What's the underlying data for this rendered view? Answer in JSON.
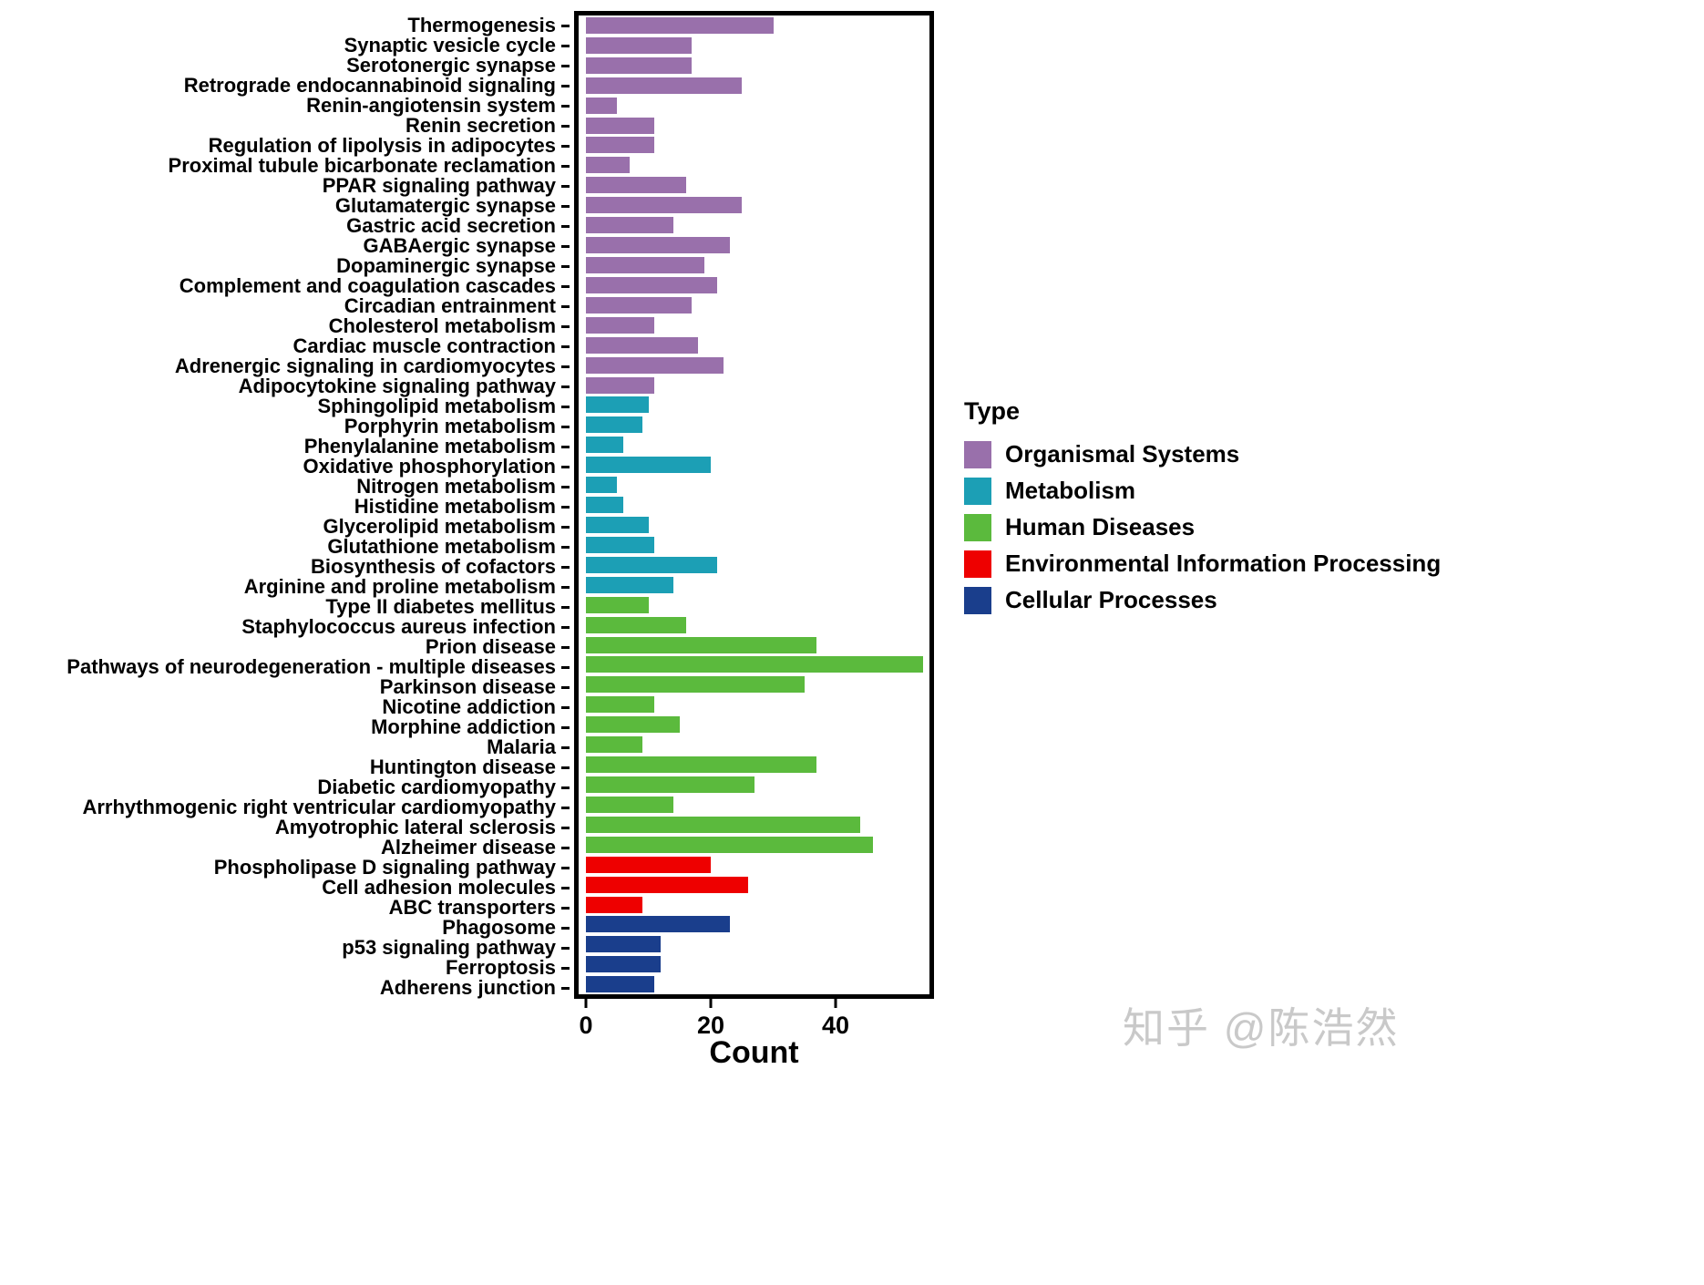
{
  "watermark": {
    "text": "知乎 @陈浩然"
  },
  "chart_data": {
    "type": "bar",
    "orientation": "horizontal",
    "title": "",
    "xlabel": "Count",
    "ylabel": "",
    "xlim": [
      0,
      55
    ],
    "x_ticks": [
      0,
      20,
      40
    ],
    "grid": false,
    "legend_title": "Type",
    "legend_position": "right",
    "types": [
      {
        "name": "Organismal Systems",
        "color": "#9970AB"
      },
      {
        "name": "Metabolism",
        "color": "#1C9FB5"
      },
      {
        "name": "Human Diseases",
        "color": "#5BBA3D"
      },
      {
        "name": "Environmental Information Processing",
        "color": "#EE0000"
      },
      {
        "name": "Cellular Processes",
        "color": "#1A3E8C"
      }
    ],
    "bars": [
      {
        "category": "Thermogenesis",
        "value": 30,
        "type": "Organismal Systems"
      },
      {
        "category": "Synaptic vesicle cycle",
        "value": 17,
        "type": "Organismal Systems"
      },
      {
        "category": "Serotonergic synapse",
        "value": 17,
        "type": "Organismal Systems"
      },
      {
        "category": "Retrograde endocannabinoid signaling",
        "value": 25,
        "type": "Organismal Systems"
      },
      {
        "category": "Renin-angiotensin system",
        "value": 5,
        "type": "Organismal Systems"
      },
      {
        "category": "Renin secretion",
        "value": 11,
        "type": "Organismal Systems"
      },
      {
        "category": "Regulation of lipolysis in adipocytes",
        "value": 11,
        "type": "Organismal Systems"
      },
      {
        "category": "Proximal tubule bicarbonate reclamation",
        "value": 7,
        "type": "Organismal Systems"
      },
      {
        "category": "PPAR signaling pathway",
        "value": 16,
        "type": "Organismal Systems"
      },
      {
        "category": "Glutamatergic synapse",
        "value": 25,
        "type": "Organismal Systems"
      },
      {
        "category": "Gastric acid secretion",
        "value": 14,
        "type": "Organismal Systems"
      },
      {
        "category": "GABAergic synapse",
        "value": 23,
        "type": "Organismal Systems"
      },
      {
        "category": "Dopaminergic synapse",
        "value": 19,
        "type": "Organismal Systems"
      },
      {
        "category": "Complement and coagulation cascades",
        "value": 21,
        "type": "Organismal Systems"
      },
      {
        "category": "Circadian entrainment",
        "value": 17,
        "type": "Organismal Systems"
      },
      {
        "category": "Cholesterol metabolism",
        "value": 11,
        "type": "Organismal Systems"
      },
      {
        "category": "Cardiac muscle contraction",
        "value": 18,
        "type": "Organismal Systems"
      },
      {
        "category": "Adrenergic signaling in cardiomyocytes",
        "value": 22,
        "type": "Organismal Systems"
      },
      {
        "category": "Adipocytokine signaling pathway",
        "value": 11,
        "type": "Organismal Systems"
      },
      {
        "category": "Sphingolipid metabolism",
        "value": 10,
        "type": "Metabolism"
      },
      {
        "category": "Porphyrin metabolism",
        "value": 9,
        "type": "Metabolism"
      },
      {
        "category": "Phenylalanine metabolism",
        "value": 6,
        "type": "Metabolism"
      },
      {
        "category": "Oxidative phosphorylation",
        "value": 20,
        "type": "Metabolism"
      },
      {
        "category": "Nitrogen metabolism",
        "value": 5,
        "type": "Metabolism"
      },
      {
        "category": "Histidine metabolism",
        "value": 6,
        "type": "Metabolism"
      },
      {
        "category": "Glycerolipid metabolism",
        "value": 10,
        "type": "Metabolism"
      },
      {
        "category": "Glutathione metabolism",
        "value": 11,
        "type": "Metabolism"
      },
      {
        "category": "Biosynthesis of cofactors",
        "value": 21,
        "type": "Metabolism"
      },
      {
        "category": "Arginine and proline metabolism",
        "value": 14,
        "type": "Metabolism"
      },
      {
        "category": "Type II diabetes mellitus",
        "value": 10,
        "type": "Human Diseases"
      },
      {
        "category": "Staphylococcus aureus infection",
        "value": 16,
        "type": "Human Diseases"
      },
      {
        "category": "Prion disease",
        "value": 37,
        "type": "Human Diseases"
      },
      {
        "category": "Pathways of neurodegeneration - multiple diseases",
        "value": 54,
        "type": "Human Diseases"
      },
      {
        "category": "Parkinson disease",
        "value": 35,
        "type": "Human Diseases"
      },
      {
        "category": "Nicotine addiction",
        "value": 11,
        "type": "Human Diseases"
      },
      {
        "category": "Morphine addiction",
        "value": 15,
        "type": "Human Diseases"
      },
      {
        "category": "Malaria",
        "value": 9,
        "type": "Human Diseases"
      },
      {
        "category": "Huntington disease",
        "value": 37,
        "type": "Human Diseases"
      },
      {
        "category": "Diabetic cardiomyopathy",
        "value": 27,
        "type": "Human Diseases"
      },
      {
        "category": "Arrhythmogenic right ventricular cardiomyopathy",
        "value": 14,
        "type": "Human Diseases"
      },
      {
        "category": "Amyotrophic lateral sclerosis",
        "value": 44,
        "type": "Human Diseases"
      },
      {
        "category": "Alzheimer disease",
        "value": 46,
        "type": "Human Diseases"
      },
      {
        "category": "Phospholipase D signaling pathway",
        "value": 20,
        "type": "Environmental Information Processing"
      },
      {
        "category": "Cell adhesion molecules",
        "value": 26,
        "type": "Environmental Information Processing"
      },
      {
        "category": "ABC transporters",
        "value": 9,
        "type": "Environmental Information Processing"
      },
      {
        "category": "Phagosome",
        "value": 23,
        "type": "Cellular Processes"
      },
      {
        "category": "p53 signaling pathway",
        "value": 12,
        "type": "Cellular Processes"
      },
      {
        "category": "Ferroptosis",
        "value": 12,
        "type": "Cellular Processes"
      },
      {
        "category": "Adherens junction",
        "value": 11,
        "type": "Cellular Processes"
      }
    ]
  }
}
